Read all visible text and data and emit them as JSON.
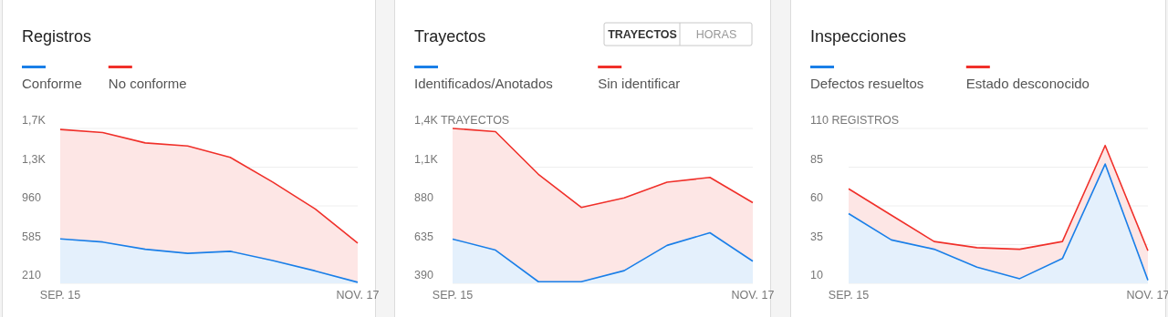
{
  "chart_data": [
    {
      "type": "area",
      "title": "Registros",
      "categories": [
        "SEP. 15",
        null,
        null,
        null,
        null,
        null,
        null,
        "NOV. 17"
      ],
      "series": [
        {
          "name": "No conforme",
          "color": "#f0302a",
          "values": [
            1700,
            1670,
            1570,
            1540,
            1430,
            1190,
            930,
            600
          ]
        },
        {
          "name": "Conforme",
          "color": "#1a7fe8",
          "values": [
            640,
            610,
            540,
            500,
            520,
            430,
            330,
            220
          ]
        }
      ],
      "ylim": [
        210,
        1710
      ],
      "yticks": [
        210,
        585,
        960,
        {
          "value": 1335,
          "label": "1,3K"
        },
        {
          "value": 1710,
          "label": "1,7K"
        }
      ],
      "grid": "y",
      "legend": "top left"
    },
    {
      "type": "area",
      "title": "Trayectos",
      "categories": [
        "SEP. 15",
        null,
        null,
        null,
        null,
        null,
        null,
        "NOV. 17"
      ],
      "series": [
        {
          "name": "Sin identificar",
          "color": "#f0302a",
          "values": [
            1370,
            1350,
            1080,
            870,
            930,
            1030,
            1060,
            900
          ]
        },
        {
          "name": "Identificados/Anotados",
          "color": "#1a7fe8",
          "values": [
            670,
            600,
            400,
            400,
            470,
            630,
            710,
            530
          ]
        }
      ],
      "ylim": [
        390,
        1370
      ],
      "yticks": [
        390,
        635,
        880,
        {
          "value": 1125,
          "label": "1,1K"
        },
        {
          "value": 1370,
          "label": "1,4K TRAYECTOS"
        }
      ],
      "grid": "y",
      "legend": "top left",
      "annotations": [
        "TRAYECTOS",
        "HORAS"
      ]
    },
    {
      "type": "area",
      "title": "Inspecciones",
      "categories": [
        "SEP. 15",
        null,
        null,
        null,
        null,
        null,
        null,
        "NOV. 17"
      ],
      "series": [
        {
          "name": "Estado desconocido",
          "color": "#f0302a",
          "values": [
            71,
            54,
            37,
            33,
            32,
            37,
            99,
            31
          ]
        },
        {
          "name": "Defectos resueltos",
          "color": "#1a7fe8",
          "values": [
            55,
            38,
            32,
            20.5,
            13,
            26,
            87,
            12
          ]
        }
      ],
      "ylim": [
        10,
        110
      ],
      "yticks": [
        10,
        35,
        60,
        85,
        {
          "value": 110,
          "label": "110 REGISTROS"
        }
      ],
      "grid": "y",
      "legend": "top left"
    }
  ]
}
